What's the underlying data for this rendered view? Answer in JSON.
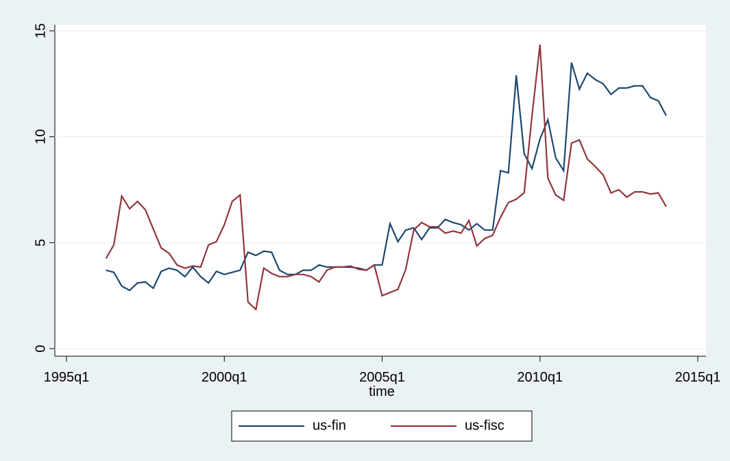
{
  "chart_data": {
    "type": "line",
    "x_label": "time",
    "x": [
      "1996q2",
      "1996q3",
      "1996q4",
      "1997q1",
      "1997q2",
      "1997q3",
      "1997q4",
      "1998q1",
      "1998q2",
      "1998q3",
      "1998q4",
      "1999q1",
      "1999q2",
      "1999q3",
      "1999q4",
      "2000q1",
      "2000q2",
      "2000q3",
      "2000q4",
      "2001q1",
      "2001q2",
      "2001q3",
      "2001q4",
      "2002q1",
      "2002q2",
      "2002q3",
      "2002q4",
      "2003q1",
      "2003q2",
      "2003q3",
      "2003q4",
      "2004q1",
      "2004q2",
      "2004q3",
      "2004q4",
      "2005q1",
      "2005q2",
      "2005q3",
      "2005q4",
      "2006q1",
      "2006q2",
      "2006q3",
      "2006q4",
      "2007q1",
      "2007q2",
      "2007q3",
      "2007q4",
      "2008q1",
      "2008q2",
      "2008q3",
      "2008q4",
      "2009q1",
      "2009q2",
      "2009q3",
      "2009q4",
      "2010q1",
      "2010q2",
      "2010q3",
      "2010q4",
      "2011q1",
      "2011q2",
      "2011q3",
      "2011q4",
      "2012q1",
      "2012q2",
      "2012q3",
      "2012q4",
      "2013q1",
      "2013q2",
      "2013q3",
      "2013q4",
      "2014q1"
    ],
    "series": [
      {
        "name": "us-fin",
        "color": "#1a476f",
        "values": [
          3.7,
          3.6,
          2.95,
          2.75,
          3.1,
          3.15,
          2.85,
          3.65,
          3.8,
          3.7,
          3.4,
          3.85,
          3.4,
          3.1,
          3.65,
          3.5,
          3.6,
          3.7,
          4.55,
          4.4,
          4.6,
          4.55,
          3.7,
          3.5,
          3.5,
          3.7,
          3.7,
          3.95,
          3.85,
          3.85,
          3.85,
          3.85,
          3.8,
          3.7,
          3.95,
          3.95,
          5.9,
          5.05,
          5.6,
          5.7,
          5.15,
          5.7,
          5.7,
          6.1,
          5.95,
          5.85,
          5.6,
          5.9,
          5.6,
          5.6,
          8.4,
          8.3,
          12.9,
          9.2,
          8.5,
          9.9,
          10.8,
          9.0,
          8.4,
          13.5,
          12.25,
          13.0,
          12.7,
          12.5,
          12.0,
          12.3,
          12.3,
          12.4,
          12.4,
          11.85,
          11.7,
          11.0
        ]
      },
      {
        "name": "us-fisc",
        "color": "#90353b",
        "values": [
          4.25,
          4.9,
          7.2,
          6.6,
          6.95,
          6.55,
          5.65,
          4.75,
          4.5,
          3.95,
          3.8,
          3.9,
          3.85,
          4.9,
          5.05,
          5.85,
          6.95,
          7.25,
          2.2,
          1.85,
          3.8,
          3.55,
          3.4,
          3.4,
          3.5,
          3.5,
          3.4,
          3.15,
          3.7,
          3.85,
          3.85,
          3.9,
          3.75,
          3.7,
          3.95,
          2.5,
          2.65,
          2.8,
          3.75,
          5.6,
          5.95,
          5.75,
          5.75,
          5.45,
          5.55,
          5.45,
          6.05,
          4.85,
          5.2,
          5.35,
          6.2,
          6.9,
          7.05,
          7.35,
          11.0,
          14.35,
          8.05,
          7.25,
          7.0,
          9.7,
          9.85,
          8.95,
          8.6,
          8.2,
          7.35,
          7.5,
          7.15,
          7.4,
          7.4,
          7.3,
          7.35,
          6.7
        ]
      }
    ],
    "xlim": [
      "1995q1",
      "2015q1"
    ],
    "xticks": [
      "1995q1",
      "2000q1",
      "2005q1",
      "2010q1",
      "2015q1"
    ],
    "ylim": [
      0,
      15
    ],
    "yticks": [
      0,
      5,
      10,
      15
    ],
    "grid": true,
    "legend": "bottom"
  }
}
